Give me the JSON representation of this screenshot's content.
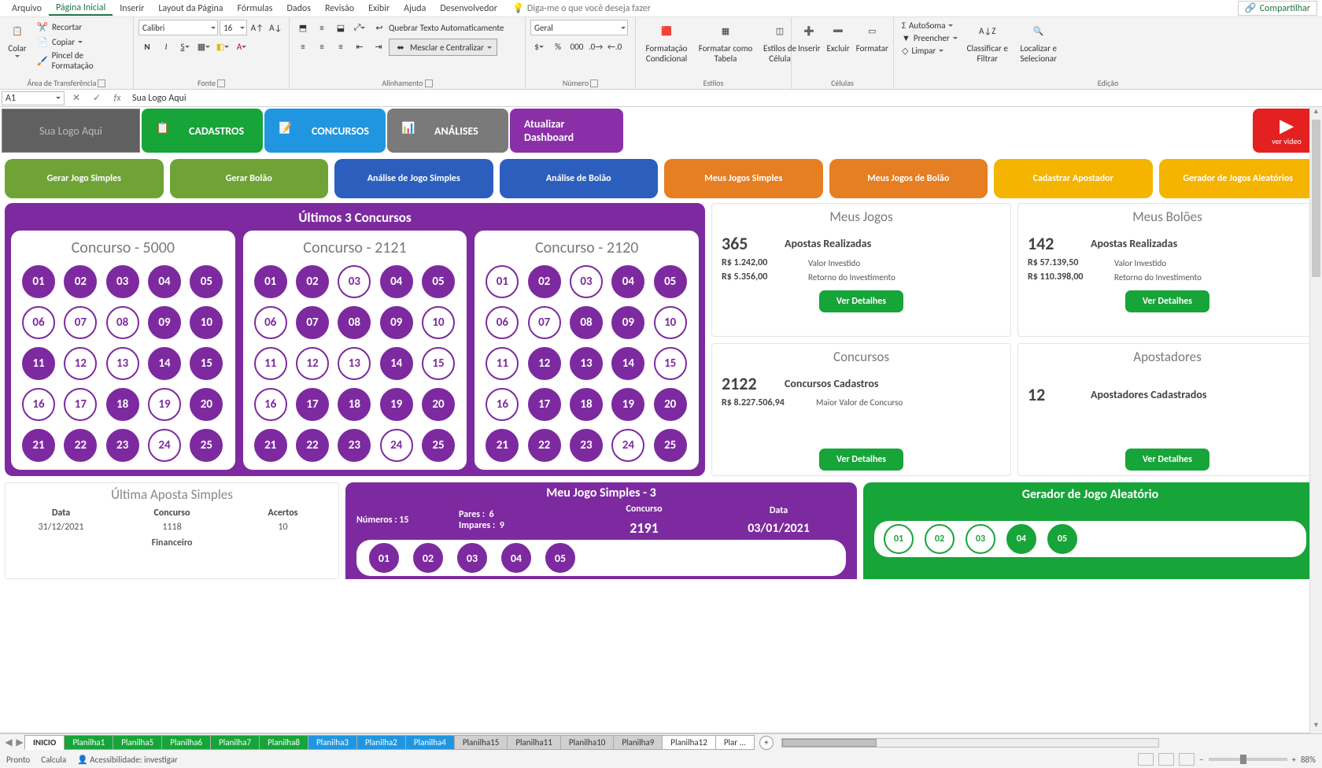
{
  "menus": [
    "Arquivo",
    "Página Inicial",
    "Inserir",
    "Layout da Página",
    "Fórmulas",
    "Dados",
    "Revisão",
    "Exibir",
    "Ajuda",
    "Desenvolvedor"
  ],
  "tellme": "Diga-me o que você deseja fazer",
  "share": "Compartilhar",
  "clipboard": {
    "paste": "Colar",
    "cut": "Recortar",
    "copy": "Copiar",
    "painter": "Pincel de Formatação",
    "group": "Área de Transferência"
  },
  "font": {
    "name": "Calibri",
    "size": "16",
    "group": "Fonte"
  },
  "align": {
    "wrap": "Quebrar Texto Automaticamente",
    "merge": "Mesclar e Centralizar",
    "group": "Alinhamento"
  },
  "number": {
    "format": "Geral",
    "group": "Número"
  },
  "styles": {
    "cond": "Formatação Condicional",
    "table": "Formatar como Tabela",
    "cell": "Estilos de Célula",
    "group": "Estilos"
  },
  "cells": {
    "insert": "Inserir",
    "delete": "Excluir",
    "format": "Formatar",
    "group": "Células"
  },
  "editing": {
    "sum": "AutoSoma",
    "fill": "Preencher",
    "clear": "Limpar",
    "sort": "Classificar e Filtrar",
    "find": "Localizar e Selecionar",
    "group": "Edição"
  },
  "namebox": "A1",
  "formula": "Sua Logo Aqui",
  "logo": "Sua Logo Aqui",
  "pills": {
    "cadastros": "CADASTROS",
    "concursos": "CONCURSOS",
    "analises": "ANÁLISES",
    "atualizar": "Atualizar Dashboard",
    "video": "ver video"
  },
  "actions": [
    "Gerar Jogo Simples",
    "Gerar Bolão",
    "Análise de Jogo Simples",
    "Análise de Bolão",
    "Meus Jogos Simples",
    "Meus Jogos de Bolão",
    "Cadastrar Apostador",
    "Gerador de Jogos Aleatórios"
  ],
  "concursos_title": "Últimos 3  Concursos",
  "concursos": [
    {
      "title": "Concurso - 5000",
      "on": [
        1,
        2,
        3,
        4,
        5,
        9,
        10,
        11,
        14,
        15,
        18,
        20,
        21,
        22,
        23,
        25
      ]
    },
    {
      "title": "Concurso - 2121",
      "on": [
        1,
        2,
        4,
        5,
        7,
        8,
        9,
        14,
        17,
        18,
        19,
        20,
        21,
        22,
        23,
        25
      ]
    },
    {
      "title": "Concurso - 2120",
      "on": [
        2,
        4,
        5,
        8,
        9,
        12,
        13,
        14,
        17,
        18,
        19,
        20,
        21,
        22,
        23,
        25
      ]
    }
  ],
  "side": {
    "jogos": {
      "title": "Meus Jogos",
      "big": "365",
      "big_lbl": "Apostas Realizadas",
      "r1": "R$ 1.242,00",
      "r1l": "Valor Investido",
      "r2": "R$ 5.356,00",
      "r2l": "Retorno do Investimento"
    },
    "boloes": {
      "title": "Meus Bolões",
      "big": "142",
      "big_lbl": "Apostas Realizadas",
      "r1": "R$ 57.139,50",
      "r1l": "Valor Investido",
      "r2": "R$ 110.398,00",
      "r2l": "Retorno do Investimento"
    },
    "concursos": {
      "title": "Concursos",
      "big": "2122",
      "big_lbl": "Concursos Cadastros",
      "r1": "R$ 8.227.506,94",
      "r1l": "Maior Valor de Concurso"
    },
    "apostadores": {
      "title": "Apostadores",
      "big": "12",
      "big_lbl": "Apostadores Cadastrados"
    },
    "btn": "Ver Detalhes"
  },
  "last": {
    "title": "Última Aposta Simples",
    "h": [
      "Data",
      "Concurso",
      "Acertos"
    ],
    "v": [
      "31/12/2021",
      "1118",
      "10"
    ],
    "fin": "Financeiro"
  },
  "meujogo": {
    "title": "Meu Jogo Simples - 3",
    "numeros_h": "Números :",
    "numeros": "15",
    "pares_h": "Pares :",
    "pares": "6",
    "impares_h": "Impares :",
    "impares": "9",
    "concurso_h": "Concurso",
    "concurso": "2191",
    "data_h": "Data",
    "data": "03/01/2021",
    "balls": [
      "01",
      "02",
      "03",
      "04",
      "05"
    ]
  },
  "gerador": {
    "title": "Gerador de Jogo Aleatório",
    "balls": [
      {
        "n": "01",
        "on": false
      },
      {
        "n": "02",
        "on": false
      },
      {
        "n": "03",
        "on": false
      },
      {
        "n": "04",
        "on": true
      },
      {
        "n": "05",
        "on": true
      }
    ]
  },
  "tabs": [
    {
      "label": "INICIO",
      "cls": "active"
    },
    {
      "label": "Planilha1",
      "cls": "green"
    },
    {
      "label": "Planilha5",
      "cls": "green"
    },
    {
      "label": "Planilha6",
      "cls": "green"
    },
    {
      "label": "Planilha7",
      "cls": "green"
    },
    {
      "label": "Planilha8",
      "cls": "green"
    },
    {
      "label": "Planilha3",
      "cls": "blue"
    },
    {
      "label": "Planilha2",
      "cls": "blue"
    },
    {
      "label": "Planilha4",
      "cls": "blue"
    },
    {
      "label": "Planilha15",
      "cls": "gray"
    },
    {
      "label": "Planilha11",
      "cls": "gray"
    },
    {
      "label": "Planilha10",
      "cls": "gray"
    },
    {
      "label": "Planilha9",
      "cls": "gray"
    },
    {
      "label": "Planilha12",
      "cls": ""
    },
    {
      "label": "Plar ...",
      "cls": ""
    }
  ],
  "status": {
    "ready": "Pronto",
    "calc": "Calcula",
    "access": "Acessibilidade: investigar",
    "zoom": "88%"
  }
}
